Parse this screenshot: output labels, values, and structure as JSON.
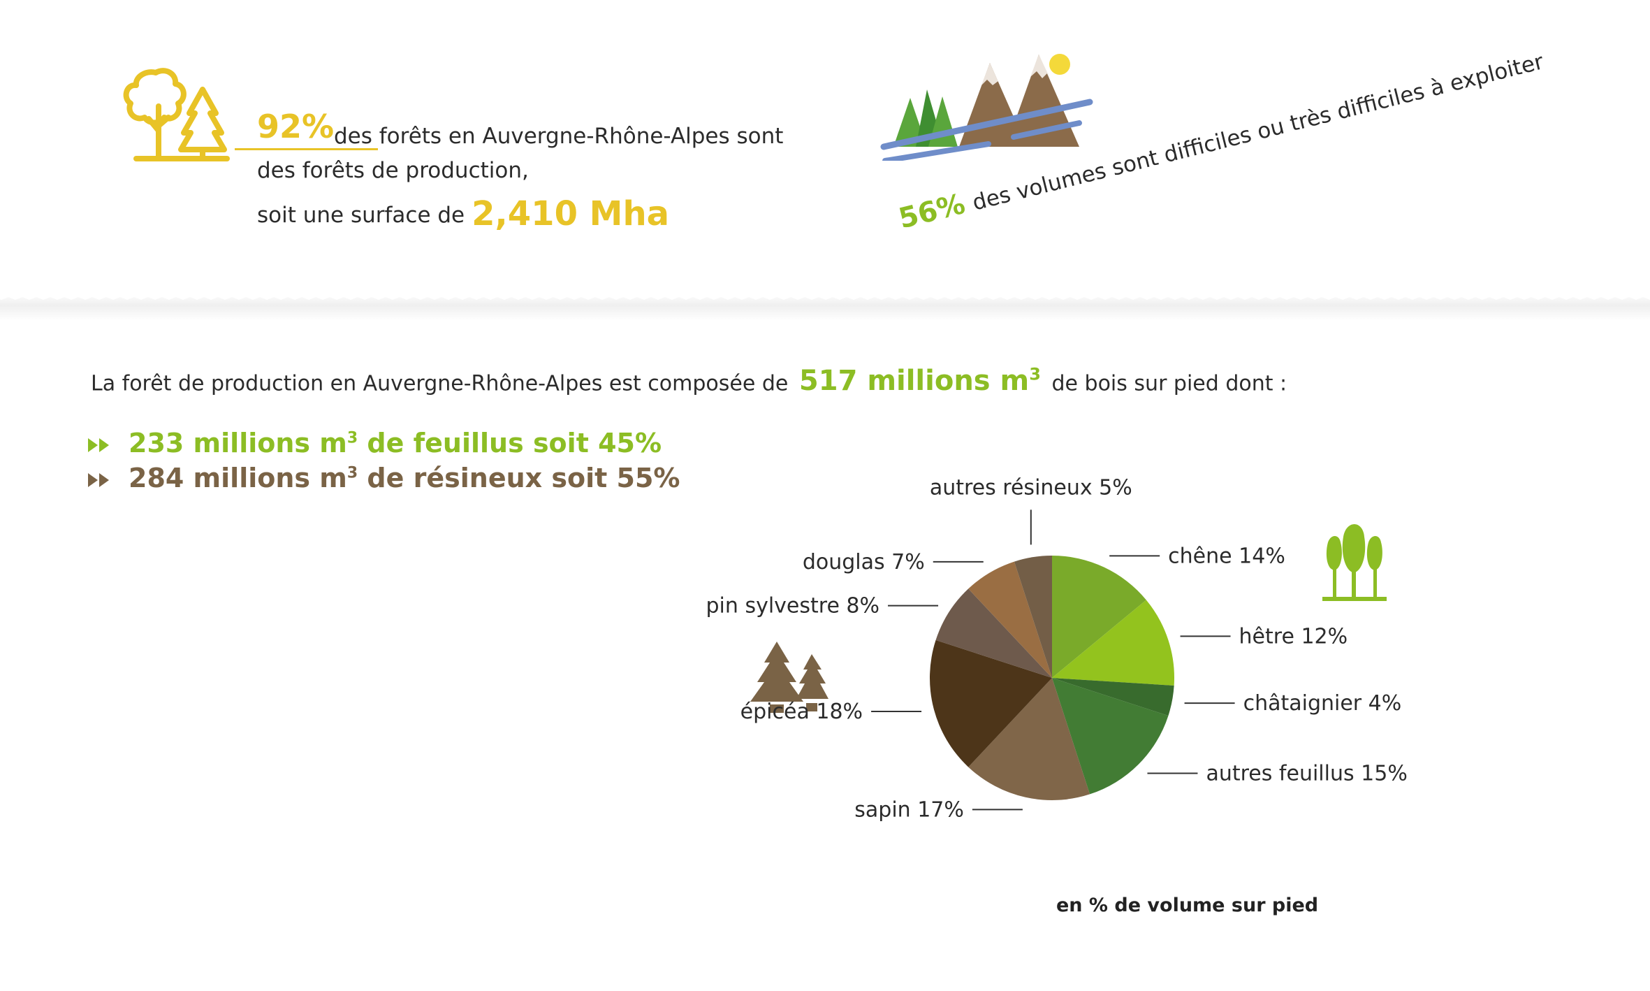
{
  "stat_production": {
    "percent": "92%",
    "line1": "des forêts en Auvergne-Rhône-Alpes sont",
    "line2": "des forêts de production,",
    "line3_prefix": "soit une surface de",
    "surface": "2,410 Mha"
  },
  "stat_difficult": {
    "percent": "56%",
    "text": "des volumes sont difficiles ou très difficiles à exploiter"
  },
  "composition": {
    "prefix": "La forêt de production en Auvergne-Rhône-Alpes est composée de",
    "volume": "517 millions m",
    "volume_sup": "3",
    "suffix": "de bois sur pied dont  :"
  },
  "bullets": [
    {
      "text_a": "233 millions m",
      "sup": "3",
      "text_b": " de feuillus soit 45%"
    },
    {
      "text_a": "284 millions m",
      "sup": "3",
      "text_b": " de résineux soit 55%"
    }
  ],
  "colors": {
    "yellow": "#e8c327",
    "green": "#8cbd24",
    "brown": "#7a6346"
  },
  "icons": {
    "production": "deciduous-and-pine-trees-icon",
    "mountains": "mountains-icon",
    "feuillus": "deciduous-trees-icon",
    "resineux": "conifer-trees-icon",
    "bullet": "double-arrow-icon"
  },
  "chart_data": {
    "type": "pie",
    "caption": "en % de volume sur pied",
    "slices": [
      {
        "label": "chêne 14%",
        "value": 14,
        "color": "#7aaa2a"
      },
      {
        "label": "hêtre 12%",
        "value": 12,
        "color": "#93c31e"
      },
      {
        "label": "châtaignier 4%",
        "value": 4,
        "color": "#386b2d"
      },
      {
        "label": "autres feuillus 15%",
        "value": 15,
        "color": "#427c34"
      },
      {
        "label": "sapin 17%",
        "value": 17,
        "color": "#806649"
      },
      {
        "label": "épicéa 18%",
        "value": 18,
        "color": "#4d3519"
      },
      {
        "label": "pin sylvestre 8%",
        "value": 8,
        "color": "#6e5a4c"
      },
      {
        "label": "douglas 7%",
        "value": 7,
        "color": "#9a6e43"
      },
      {
        "label": "autres résineux 5%",
        "value": 5,
        "color": "#735e47"
      }
    ]
  }
}
